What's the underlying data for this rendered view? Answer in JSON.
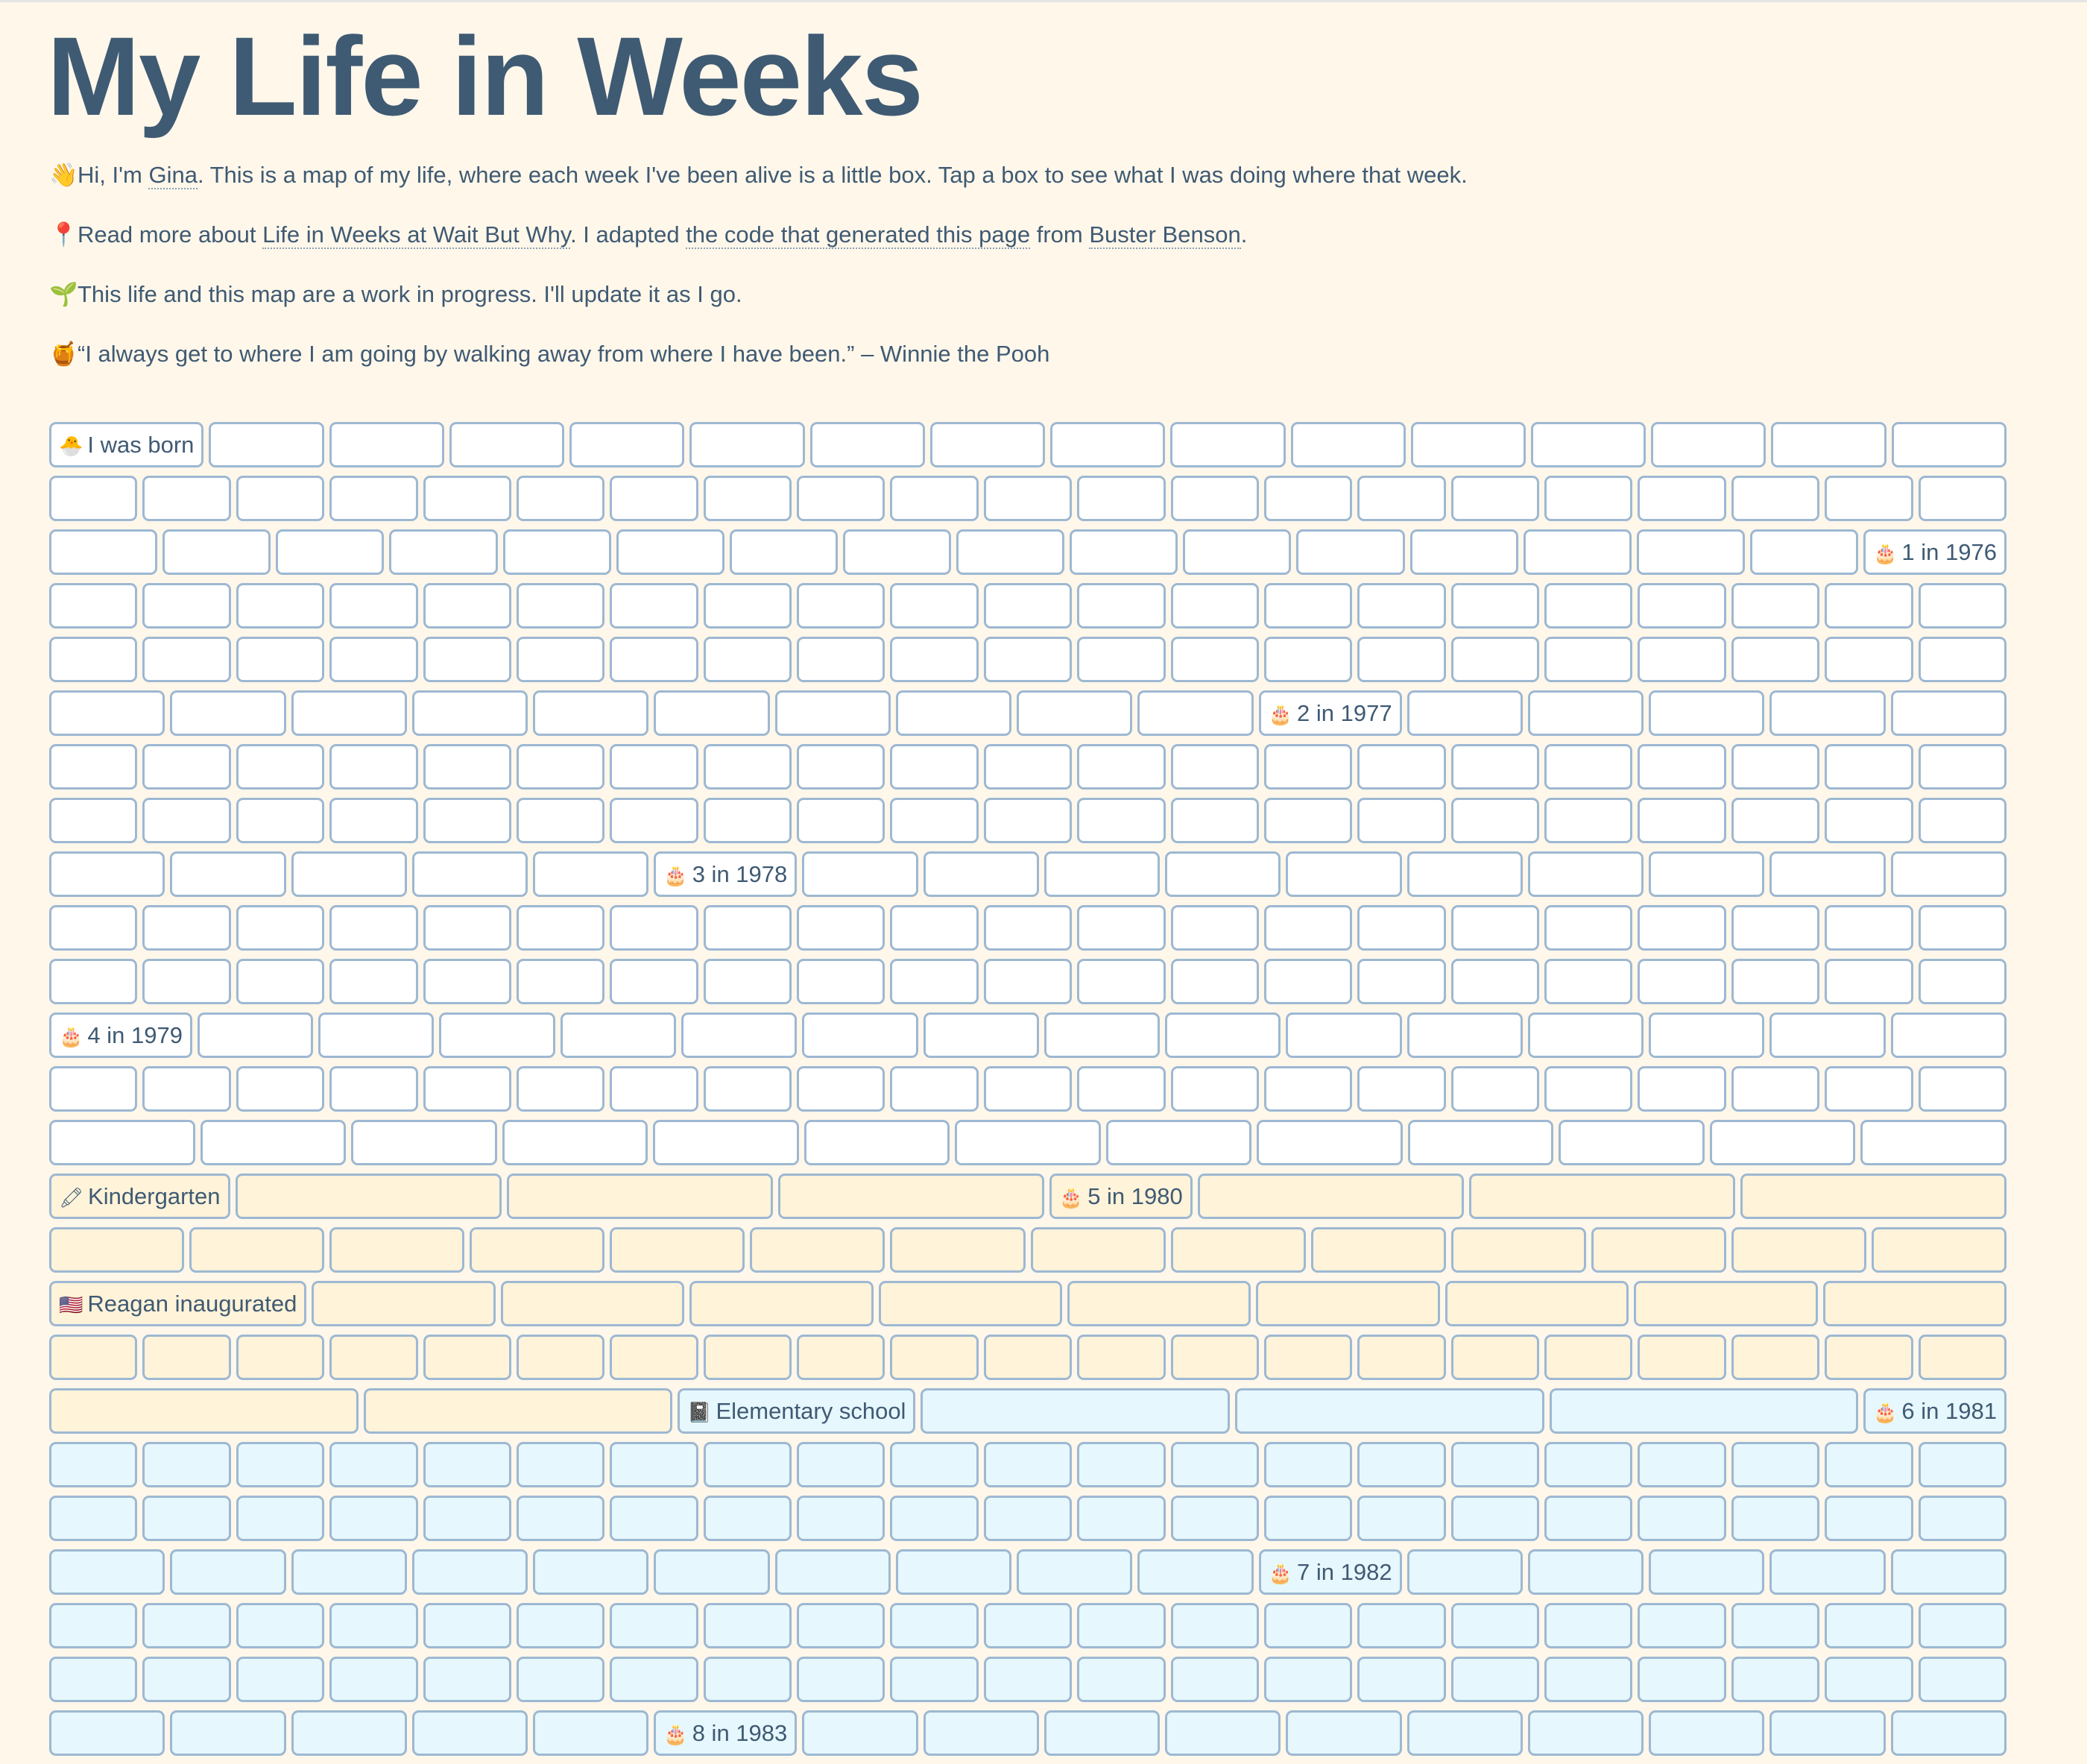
{
  "title": "My Life in Weeks",
  "intro": {
    "p1": {
      "emoji": "👋",
      "pre": "Hi, I'm ",
      "name_link": "Gina",
      "post": ". This is a map of my life, where each week I've been alive is a little box. Tap a box to see what I was doing where that week."
    },
    "p2": {
      "emoji": "📍",
      "pre": "Read more about ",
      "link1": "Life in Weeks at Wait But Why",
      "mid1": ". I adapted ",
      "link2": "the code that generated this page",
      "mid2": " from ",
      "link3": "Buster Benson",
      "post": "."
    },
    "p3": {
      "emoji": "🌱",
      "text": "This life and this map are a work in progress. I'll update it as I go."
    },
    "p4": {
      "emoji": "🍯",
      "text": "“I always get to where I am going by walking away from where I have been.” – Winnie the Pooh"
    }
  },
  "colors": {
    "default": "#ffffff",
    "kindergarten": "#fff3d9",
    "elementary": "#e6f7fd",
    "border": "#9db8d2",
    "text": "#3f5a73",
    "background": "#fff7ea"
  },
  "rows": [
    {
      "era": "default",
      "boxes": 16,
      "labels": [
        {
          "at": 0,
          "icon": "🐣",
          "icon_name": "hatching-chick-icon",
          "text": "I was born"
        }
      ]
    },
    {
      "era": "default",
      "boxes": 21,
      "labels": []
    },
    {
      "era": "default",
      "boxes": 17,
      "labels": [
        {
          "at": 16,
          "icon": "🎂",
          "icon_name": "birthday-cake-icon",
          "text": "1 in 1976"
        }
      ]
    },
    {
      "era": "default",
      "boxes": 21,
      "labels": []
    },
    {
      "era": "default",
      "boxes": 21,
      "labels": []
    },
    {
      "era": "default",
      "boxes": 16,
      "labels": [
        {
          "at": 10,
          "icon": "🎂",
          "icon_name": "birthday-cake-icon",
          "text": "2 in 1977"
        }
      ]
    },
    {
      "era": "default",
      "boxes": 21,
      "labels": []
    },
    {
      "era": "default",
      "boxes": 21,
      "labels": []
    },
    {
      "era": "default",
      "boxes": 16,
      "labels": [
        {
          "at": 5,
          "icon": "🎂",
          "icon_name": "birthday-cake-icon",
          "text": "3 in 1978"
        }
      ]
    },
    {
      "era": "default",
      "boxes": 21,
      "labels": []
    },
    {
      "era": "default",
      "boxes": 21,
      "labels": []
    },
    {
      "era": "default",
      "boxes": 16,
      "labels": [
        {
          "at": 0,
          "icon": "🎂",
          "icon_name": "birthday-cake-icon",
          "text": "4 in 1979"
        }
      ]
    },
    {
      "era": "default",
      "boxes": 21,
      "labels": []
    },
    {
      "era": "default",
      "boxes": 13,
      "labels": []
    },
    {
      "era": "kindergarten",
      "boxes": 8,
      "labels": [
        {
          "at": 0,
          "icon": "🖍",
          "icon_name": "crayon-icon",
          "text": "Kindergarten"
        },
        {
          "at": 4,
          "icon": "🎂",
          "icon_name": "birthday-cake-icon",
          "text": "5 in 1980"
        }
      ]
    },
    {
      "era": "kindergarten",
      "boxes": 14,
      "labels": []
    },
    {
      "era": "kindergarten",
      "boxes": 10,
      "labels": [
        {
          "at": 0,
          "icon": "🇺🇸",
          "icon_name": "us-flag-icon",
          "text": "Reagan inaugurated"
        }
      ]
    },
    {
      "era": "kindergarten",
      "boxes": 21,
      "labels": []
    },
    {
      "era": "split",
      "boxes": 7,
      "labels": [
        {
          "at": 2,
          "icon": "📓",
          "icon_name": "notebook-icon",
          "text": "Elementary school"
        },
        {
          "at": 6,
          "icon": "🎂",
          "icon_name": "birthday-cake-icon",
          "text": "6 in 1981"
        }
      ]
    },
    {
      "era": "elementary",
      "boxes": 21,
      "labels": []
    },
    {
      "era": "elementary",
      "boxes": 21,
      "labels": []
    },
    {
      "era": "elementary",
      "boxes": 16,
      "labels": [
        {
          "at": 10,
          "icon": "🎂",
          "icon_name": "birthday-cake-icon",
          "text": "7 in 1982"
        }
      ]
    },
    {
      "era": "elementary",
      "boxes": 21,
      "labels": []
    },
    {
      "era": "elementary",
      "boxes": 21,
      "labels": []
    },
    {
      "era": "elementary",
      "boxes": 16,
      "labels": [
        {
          "at": 5,
          "icon": "🎂",
          "icon_name": "birthday-cake-icon",
          "text": "8 in 1983"
        }
      ]
    }
  ]
}
